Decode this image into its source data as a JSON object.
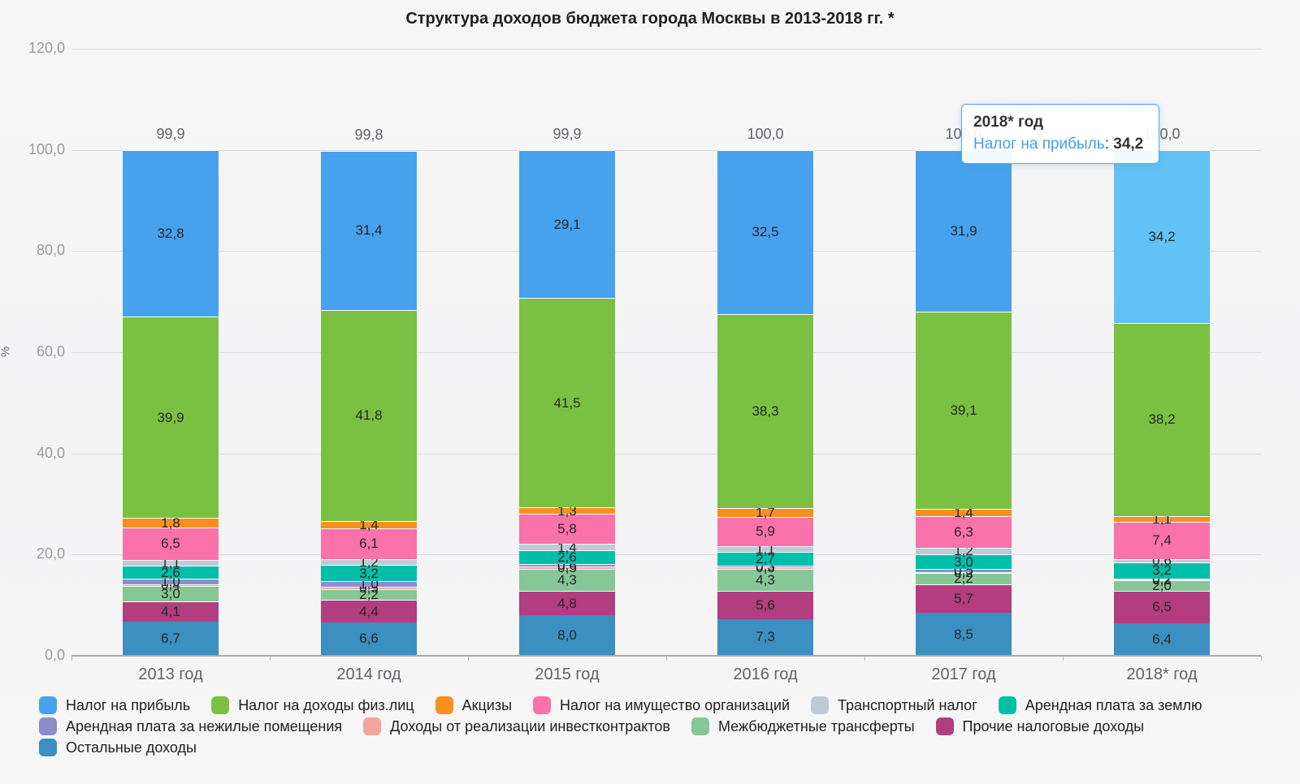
{
  "title": "Структура доходов бюджета города Москвы в 2013-2018 гг. *",
  "chart_data": {
    "type": "bar",
    "stacked": true,
    "grid": true,
    "ylabel": "%",
    "ylim": [
      0,
      120
    ],
    "yticks": [
      "120,0",
      "100,0",
      "80,0",
      "60,0",
      "40,0",
      "20,0",
      "0,0"
    ],
    "categories": [
      "2013 год",
      "2014 год",
      "2015 год",
      "2016 год",
      "2017 год",
      "2018* год"
    ],
    "stack_totals": [
      "99,9",
      "99,8",
      "99,9",
      "100,0",
      "100,0",
      "100,0"
    ],
    "legend_position": "bottom-left",
    "series": [
      {
        "key": "profit-tax",
        "name": "Налог на прибыль",
        "color": "#47a2ee",
        "values": [
          32.8,
          31.4,
          29.1,
          32.5,
          31.9,
          34.2
        ]
      },
      {
        "key": "personal-income-tax",
        "name": "Налог на доходы физ.лиц",
        "color": "#7ac143",
        "values": [
          39.9,
          41.8,
          41.5,
          38.3,
          39.1,
          38.2
        ]
      },
      {
        "key": "excise",
        "name": "Акцизы",
        "color": "#f9901e",
        "values": [
          1.8,
          1.4,
          1.3,
          1.7,
          1.4,
          1.1
        ]
      },
      {
        "key": "org-property-tax",
        "name": "Налог на имущество организаций",
        "color": "#f972a9",
        "values": [
          6.5,
          6.1,
          5.8,
          5.9,
          6.3,
          7.4
        ]
      },
      {
        "key": "transport-tax",
        "name": "Транспортный налог",
        "color": "#bccbd5",
        "values": [
          1.1,
          1.2,
          1.4,
          1.1,
          1.2,
          0.6
        ]
      },
      {
        "key": "land-rent",
        "name": "Арендная плата за землю",
        "color": "#00bfa9",
        "values": [
          2.6,
          3.2,
          2.6,
          2.7,
          3.0,
          3.2
        ]
      },
      {
        "key": "premises-rent",
        "name": "Арендная плата за нежилые помещения",
        "color": "#8a8fcb",
        "values": [
          1.0,
          1.0,
          0.6,
          0.3,
          0.5,
          0.2
        ]
      },
      {
        "key": "investment-contracts",
        "name": "Доходы от реализации инвестконтрактов",
        "color": "#f3a49e",
        "values": [
          0.4,
          0.5,
          0.5,
          0.3,
          0.2,
          0.2
        ]
      },
      {
        "key": "interbudget-transfers",
        "name": "Межбюджетные трансферты",
        "color": "#85c795",
        "values": [
          3.0,
          2.2,
          4.3,
          4.3,
          2.2,
          2.0
        ]
      },
      {
        "key": "other-tax-revenue",
        "name": "Прочие налоговые доходы",
        "color": "#b23d80",
        "values": [
          4.1,
          4.4,
          4.8,
          5.6,
          5.7,
          6.5
        ]
      },
      {
        "key": "other-revenue",
        "name": "Остальные доходы",
        "color": "#3b90c1",
        "values": [
          6.7,
          6.6,
          8.0,
          7.3,
          8.5,
          6.4
        ]
      }
    ],
    "legend_rows": [
      [
        0,
        1,
        2,
        3,
        4,
        5
      ],
      [
        6,
        7,
        8,
        9
      ],
      [
        10
      ]
    ],
    "highlight": {
      "series_index": 0,
      "category_index": 5,
      "color": "#61c2f6"
    }
  },
  "tooltip": {
    "title": "2018* год",
    "series": "Налог на прибыль",
    "colon": ": ",
    "value": "34,2",
    "accent_color": "#459fe4"
  }
}
